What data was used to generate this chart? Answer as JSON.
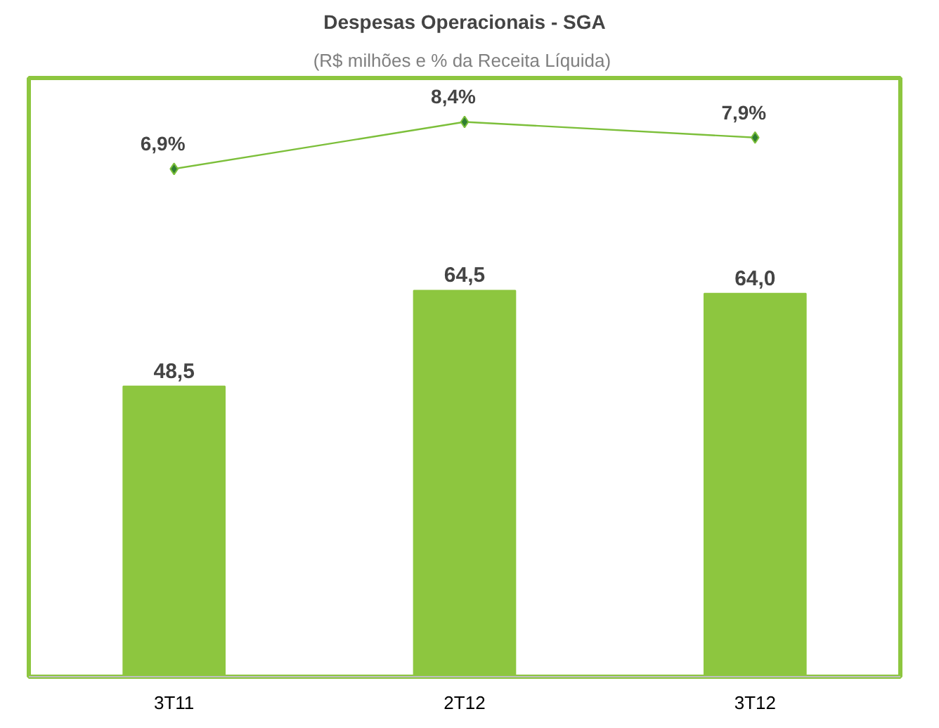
{
  "chart_data": {
    "type": "bar",
    "title": "Despesas Operacionais - SGA",
    "subtitle": "(R$ milhões  e % da Receita Líquida)",
    "categories": [
      "3T11",
      "2T12",
      "3T12"
    ],
    "series": [
      {
        "color": "#8dc63f",
        "values": [
          48.5,
          64.5,
          64.0
        ],
        "value_labels": [
          "48,5",
          "64,5",
          "64,0"
        ]
      },
      {
        "type": "line",
        "axis": "y2",
        "color": "#7cbf3a",
        "marker": "diamond",
        "values": [
          6.9,
          8.4,
          7.9
        ],
        "value_labels": [
          "6,9%",
          "8,4%",
          "7,9%"
        ]
      }
    ],
    "ylim": [
      0,
      100
    ],
    "y2lim": [
      -9.3,
      9.8
    ],
    "tick_labels": "x"
  }
}
